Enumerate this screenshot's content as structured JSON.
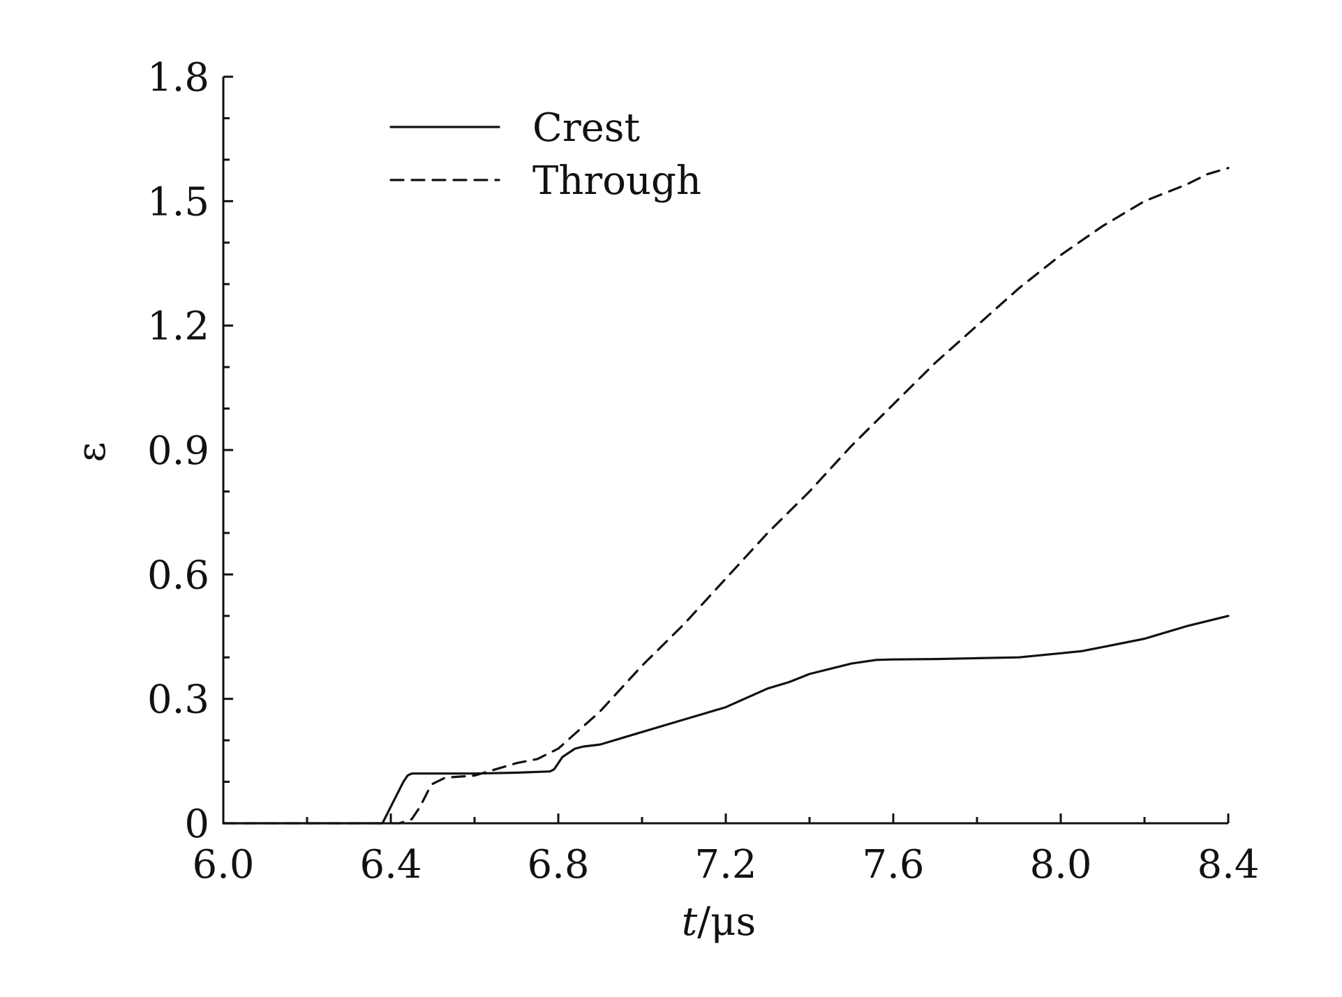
{
  "chart_data": {
    "type": "line",
    "title": "",
    "xlabel_italic": "t",
    "xlabel_rest": "/μs",
    "ylabel": "ε",
    "xlim": [
      6.0,
      8.4
    ],
    "ylim": [
      0,
      1.8
    ],
    "xticks": [
      6.0,
      6.4,
      6.8,
      7.2,
      7.6,
      8.0,
      8.4
    ],
    "xtick_labels": [
      "6.0",
      "6.4",
      "6.8",
      "7.2",
      "7.6",
      "8.0",
      "8.4"
    ],
    "yticks": [
      0,
      0.3,
      0.6,
      0.9,
      1.2,
      1.5,
      1.8
    ],
    "ytick_labels": [
      "0",
      "0.3",
      "0.6",
      "0.9",
      "1.2",
      "1.5",
      "1.8"
    ],
    "x_minor_step": 0.2,
    "y_minor_step": 0.1,
    "grid": false,
    "legend_position": "top-left",
    "series": [
      {
        "name": "Crest",
        "style": "solid",
        "color": "#111111",
        "x": [
          6.38,
          6.39,
          6.41,
          6.43,
          6.44,
          6.45,
          6.5,
          6.6,
          6.7,
          6.78,
          6.79,
          6.81,
          6.84,
          6.86,
          6.9,
          7.0,
          7.1,
          7.2,
          7.3,
          7.35,
          7.4,
          7.5,
          7.56,
          7.6,
          7.7,
          7.8,
          7.9,
          8.0,
          8.05,
          8.1,
          8.2,
          8.3,
          8.4
        ],
        "y": [
          0.0,
          0.02,
          0.06,
          0.1,
          0.115,
          0.12,
          0.12,
          0.12,
          0.122,
          0.125,
          0.13,
          0.16,
          0.18,
          0.185,
          0.19,
          0.22,
          0.25,
          0.28,
          0.325,
          0.34,
          0.36,
          0.385,
          0.394,
          0.395,
          0.396,
          0.398,
          0.4,
          0.41,
          0.415,
          0.425,
          0.445,
          0.475,
          0.5
        ]
      },
      {
        "name": "Through",
        "style": "dashed",
        "color": "#111111",
        "x": [
          6.42,
          6.45,
          6.47,
          6.49,
          6.5,
          6.53,
          6.6,
          6.65,
          6.7,
          6.75,
          6.8,
          6.9,
          7.0,
          7.1,
          7.2,
          7.3,
          7.4,
          7.5,
          7.6,
          7.7,
          7.8,
          7.9,
          8.0,
          8.1,
          8.2,
          8.25,
          8.3,
          8.35,
          8.4
        ],
        "y": [
          0.0,
          0.01,
          0.04,
          0.08,
          0.095,
          0.11,
          0.115,
          0.13,
          0.145,
          0.155,
          0.18,
          0.27,
          0.38,
          0.48,
          0.59,
          0.7,
          0.8,
          0.91,
          1.01,
          1.11,
          1.2,
          1.29,
          1.37,
          1.44,
          1.5,
          1.52,
          1.54,
          1.565,
          1.58
        ]
      }
    ]
  }
}
